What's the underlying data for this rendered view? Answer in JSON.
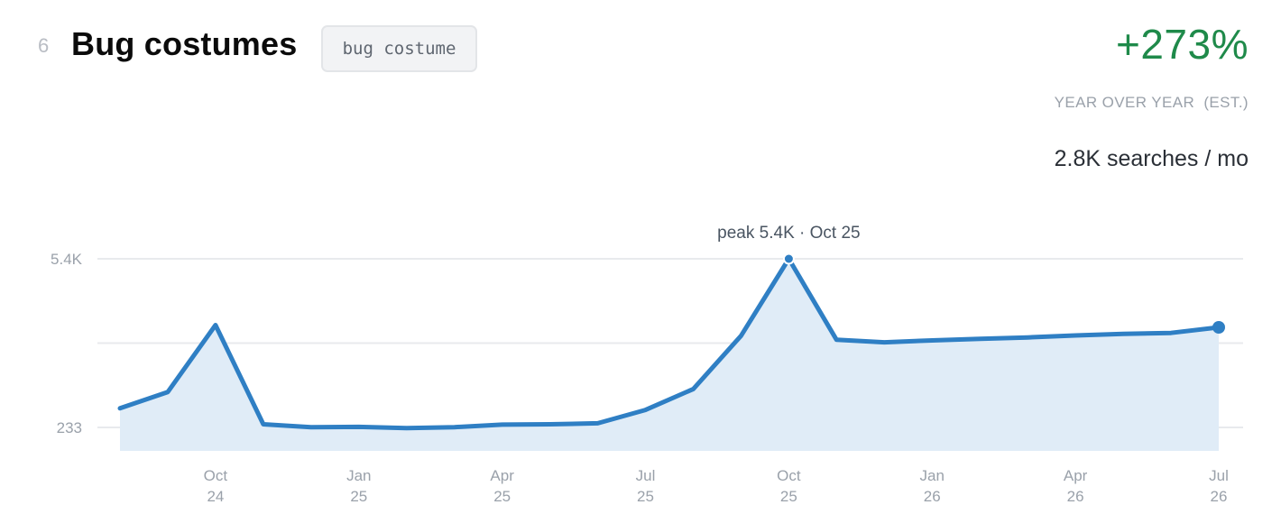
{
  "header": {
    "rank": "6",
    "title": "Bug costumes",
    "keyword_tag": "bug costume"
  },
  "stats": {
    "growth": "+273%",
    "growth_label": "YEAR OVER YEAR  (EST.)",
    "volume": "2.8K searches / mo"
  },
  "colors": {
    "line": "#2f7fc4",
    "area": "#e0ecf7",
    "growth": "#1f8a4a",
    "grid": "#e8eaed"
  },
  "chart_data": {
    "type": "area",
    "y_tick_labels": [
      "5.4K",
      "233"
    ],
    "y_ticks": [
      5400,
      233
    ],
    "ylim": [
      233,
      5400
    ],
    "x_ticks": [
      {
        "month": "Oct",
        "year": "24",
        "x": "2024-10"
      },
      {
        "month": "Jan",
        "year": "25",
        "x": "2025-01"
      },
      {
        "month": "Apr",
        "year": "25",
        "x": "2025-04"
      },
      {
        "month": "Jul",
        "year": "25",
        "x": "2025-07"
      },
      {
        "month": "Oct",
        "year": "25",
        "x": "2025-10"
      },
      {
        "month": "Jan",
        "year": "26",
        "x": "2026-01"
      },
      {
        "month": "Apr",
        "year": "26",
        "x": "2026-04"
      },
      {
        "month": "Jul",
        "year": "26",
        "x": "2026-07"
      }
    ],
    "series": [
      {
        "x": [
          "2024-08",
          "2024-09",
          "2024-10",
          "2024-11",
          "2024-12",
          "2025-01",
          "2025-02",
          "2025-03",
          "2025-04",
          "2025-05",
          "2025-06",
          "2025-07",
          "2025-08",
          "2025-09",
          "2025-10",
          "2025-11",
          "2025-12",
          "2025-01-26",
          "2026-02",
          "2026-03",
          "2026-04",
          "2026-05",
          "2026-06",
          "2026-07"
        ],
        "values": [
          820,
          1320,
          3370,
          330,
          240,
          250,
          210,
          240,
          320,
          330,
          360,
          770,
          1410,
          3040,
          5400,
          2920,
          2840,
          2900,
          2950,
          2990,
          3050,
          3100,
          3130,
          3300
        ]
      }
    ],
    "peak_annotation": "peak 5.4K · Oct 25",
    "grid": true
  }
}
